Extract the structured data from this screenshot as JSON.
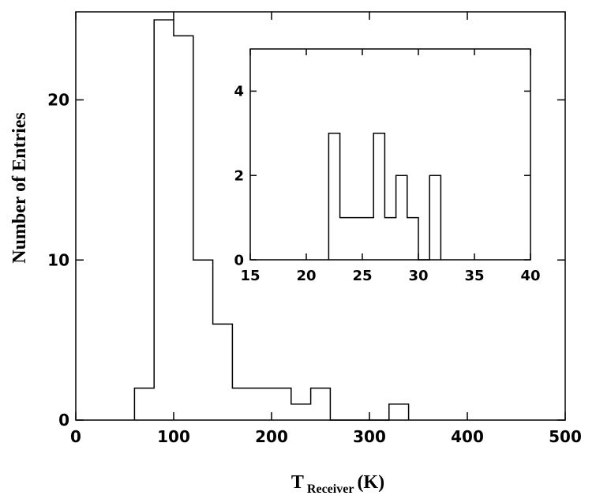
{
  "chart_data": [
    {
      "type": "histogram",
      "title": "",
      "xlabel_main": "T",
      "xlabel_sub": "Receiver",
      "xlabel_unit": "(K)",
      "ylabel": "Number of Entries",
      "xlim": [
        0,
        500
      ],
      "ylim": [
        0,
        25.5
      ],
      "xticks": [
        0,
        100,
        200,
        300,
        400,
        500
      ],
      "yticks": [
        0,
        10,
        20
      ],
      "bin_width": 20,
      "bins": [
        {
          "x0": 60,
          "x1": 80,
          "count": 2
        },
        {
          "x0": 80,
          "x1": 100,
          "count": 25
        },
        {
          "x0": 100,
          "x1": 120,
          "count": 24
        },
        {
          "x0": 120,
          "x1": 140,
          "count": 10
        },
        {
          "x0": 140,
          "x1": 160,
          "count": 6
        },
        {
          "x0": 160,
          "x1": 180,
          "count": 2
        },
        {
          "x0": 180,
          "x1": 200,
          "count": 2
        },
        {
          "x0": 200,
          "x1": 220,
          "count": 2
        },
        {
          "x0": 220,
          "x1": 240,
          "count": 1
        },
        {
          "x0": 240,
          "x1": 260,
          "count": 2
        },
        {
          "x0": 260,
          "x1": 280,
          "count": 0
        },
        {
          "x0": 280,
          "x1": 300,
          "count": 0
        },
        {
          "x0": 300,
          "x1": 320,
          "count": 0
        },
        {
          "x0": 320,
          "x1": 340,
          "count": 1
        }
      ],
      "grid": false,
      "legend": "none"
    },
    {
      "type": "histogram",
      "role": "inset",
      "xlim": [
        15,
        40
      ],
      "ylim": [
        0,
        5
      ],
      "xticks": [
        15,
        20,
        25,
        30,
        35,
        40
      ],
      "yticks": [
        0,
        2,
        4
      ],
      "bin_width": 1,
      "bins": [
        {
          "x0": 22,
          "x1": 23,
          "count": 3
        },
        {
          "x0": 23,
          "x1": 24,
          "count": 1
        },
        {
          "x0": 24,
          "x1": 25,
          "count": 1
        },
        {
          "x0": 25,
          "x1": 26,
          "count": 1
        },
        {
          "x0": 26,
          "x1": 27,
          "count": 3
        },
        {
          "x0": 27,
          "x1": 28,
          "count": 1
        },
        {
          "x0": 28,
          "x1": 29,
          "count": 2
        },
        {
          "x0": 29,
          "x1": 30,
          "count": 1
        },
        {
          "x0": 30,
          "x1": 31,
          "count": 0
        },
        {
          "x0": 31,
          "x1": 32,
          "count": 2
        }
      ],
      "grid": false,
      "legend": "none"
    }
  ]
}
